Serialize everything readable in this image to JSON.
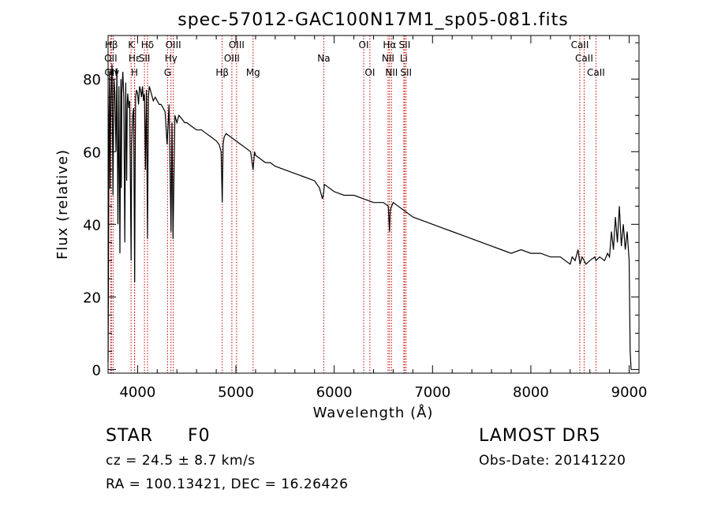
{
  "chart_data": {
    "type": "line",
    "title": "spec-57012-GAC100N17M1_sp05-081.fits",
    "xlabel": "Wavelength (Å)",
    "ylabel": "Flux (relative)",
    "xlim": [
      3700,
      9100
    ],
    "ylim": [
      -1,
      92
    ],
    "xticks": [
      {
        "v": 4000,
        "label": "4000"
      },
      {
        "v": 5000,
        "label": "5000"
      },
      {
        "v": 6000,
        "label": "6000"
      },
      {
        "v": 7000,
        "label": "7000"
      },
      {
        "v": 8000,
        "label": "8000"
      },
      {
        "v": 9000,
        "label": "9000"
      }
    ],
    "yticks": [
      {
        "v": 0,
        "label": "0"
      },
      {
        "v": 20,
        "label": "20"
      },
      {
        "v": 40,
        "label": "40"
      },
      {
        "v": 60,
        "label": "60"
      },
      {
        "v": 80,
        "label": "80"
      }
    ],
    "spectral_lines": [
      {
        "label": "Hβ",
        "wl": 3734,
        "row": 0
      },
      {
        "label": "OII",
        "wl": 3727,
        "row": 1
      },
      {
        "label": "OII",
        "wl": 3729,
        "row": 2
      },
      {
        "label": "Hγ",
        "wl": 3751,
        "row": 2
      },
      {
        "label": "K",
        "wl": 3934,
        "row": 0
      },
      {
        "label": "Hε",
        "wl": 3970,
        "row": 1
      },
      {
        "label": "H",
        "wl": 3969,
        "row": 2
      },
      {
        "label": "Hδ",
        "wl": 4101,
        "row": 0
      },
      {
        "label": "SII",
        "wl": 4070,
        "row": 1
      },
      {
        "label": "OIII",
        "wl": 4363,
        "row": 0
      },
      {
        "label": "Hγ",
        "wl": 4340,
        "row": 1
      },
      {
        "label": "G",
        "wl": 4305,
        "row": 2
      },
      {
        "label": "Hβ",
        "wl": 4861,
        "row": 2
      },
      {
        "label": "OIII",
        "wl": 4959,
        "row": 1
      },
      {
        "label": "OIII",
        "wl": 5007,
        "row": 0
      },
      {
        "label": "Mg",
        "wl": 5175,
        "row": 2
      },
      {
        "label": "Na",
        "wl": 5894,
        "row": 1
      },
      {
        "label": "OI",
        "wl": 6300,
        "row": 0
      },
      {
        "label": "OI",
        "wl": 6363,
        "row": 2
      },
      {
        "label": "NII",
        "wl": 6548,
        "row": 1
      },
      {
        "label": "Hα",
        "wl": 6563,
        "row": 0
      },
      {
        "label": "NII",
        "wl": 6583,
        "row": 2
      },
      {
        "label": "SII",
        "wl": 6716,
        "row": 0
      },
      {
        "label": "Li",
        "wl": 6708,
        "row": 1
      },
      {
        "label": "SII",
        "wl": 6731,
        "row": 2
      },
      {
        "label": "CaII",
        "wl": 8498,
        "row": 0
      },
      {
        "label": "CaII",
        "wl": 8542,
        "row": 1
      },
      {
        "label": "CaII",
        "wl": 8662,
        "row": 2
      }
    ],
    "series": [
      {
        "wl": [
          3700,
          3705,
          3710,
          3715,
          3720,
          3725,
          3730,
          3740,
          3750,
          3760,
          3770,
          3780,
          3790,
          3800,
          3810,
          3820,
          3830,
          3835,
          3840,
          3850,
          3860,
          3870,
          3880,
          3889,
          3895,
          3900,
          3910,
          3920,
          3934,
          3940,
          3950,
          3960,
          3970,
          3975,
          3980,
          3990,
          4000,
          4010,
          4020,
          4030,
          4040,
          4050,
          4060,
          4070,
          4080,
          4090,
          4101,
          4110,
          4120,
          4140,
          4160,
          4180,
          4200,
          4220,
          4240,
          4260,
          4280,
          4300,
          4320,
          4340,
          4350,
          4360,
          4380,
          4400,
          4420,
          4450,
          4480,
          4500,
          4550,
          4600,
          4650,
          4700,
          4750,
          4800,
          4830,
          4850,
          4861,
          4870,
          4880,
          4900,
          4950,
          5000,
          5050,
          5100,
          5150,
          5175,
          5190,
          5200,
          5250,
          5300,
          5350,
          5400,
          5500,
          5600,
          5700,
          5800,
          5850,
          5880,
          5894,
          5900,
          5950,
          6000,
          6100,
          6200,
          6300,
          6400,
          6500,
          6550,
          6563,
          6570,
          6600,
          6650,
          6700,
          6750,
          6800,
          6900,
          7000,
          7100,
          7200,
          7300,
          7400,
          7500,
          7600,
          7700,
          7800,
          7900,
          8000,
          8100,
          8200,
          8300,
          8350,
          8400,
          8420,
          8450,
          8480,
          8500,
          8520,
          8542,
          8560,
          8600,
          8650,
          8662,
          8700,
          8750,
          8780,
          8800,
          8820,
          8840,
          8860,
          8880,
          8900,
          8920,
          8940,
          8960,
          8980,
          9000,
          9010,
          9020
        ],
        "flux": [
          2,
          30,
          70,
          82,
          50,
          65,
          75,
          84,
          48,
          80,
          76,
          60,
          83,
          40,
          78,
          32,
          80,
          50,
          76,
          82,
          75,
          35,
          79,
          52,
          73,
          76,
          72,
          74,
          30,
          62,
          70,
          72,
          24,
          55,
          75,
          77,
          76,
          73,
          78,
          77,
          75,
          78,
          74,
          76,
          55,
          77,
          36,
          75,
          78,
          76,
          74,
          75,
          74,
          73,
          73,
          72,
          71,
          62,
          73,
          38,
          68,
          36,
          70,
          68,
          70,
          69,
          68,
          68,
          67,
          66,
          66,
          65,
          64,
          63,
          62,
          60,
          46,
          62,
          64,
          65,
          64,
          63,
          62,
          61,
          60,
          55,
          60,
          59,
          58,
          57,
          57,
          56,
          55,
          54,
          53,
          52,
          50,
          47,
          49,
          51,
          50,
          49,
          48,
          48,
          47,
          46,
          46,
          45,
          38,
          44,
          46,
          45,
          44,
          43,
          42,
          41,
          40,
          39,
          38,
          37,
          36,
          35,
          34,
          33,
          32,
          33,
          32,
          32,
          31,
          31,
          30,
          29,
          31,
          30,
          33,
          29,
          31,
          30,
          29,
          30,
          31,
          30,
          31,
          30,
          32,
          31,
          38,
          33,
          42,
          35,
          45,
          34,
          40,
          33,
          38,
          30,
          5,
          0
        ]
      }
    ]
  },
  "info": {
    "object_type": "STAR",
    "subclass": "F0",
    "survey": "LAMOST DR5",
    "cz": "cz = 24.5 ± 8.7 km/s",
    "obs_date": "Obs-Date: 20141220",
    "coords": "RA = 100.13421, DEC =  16.26426"
  },
  "colors": {
    "spectrum": "#000000",
    "line_markers": "#c00000",
    "axes": "#000000",
    "background": "#ffffff"
  }
}
